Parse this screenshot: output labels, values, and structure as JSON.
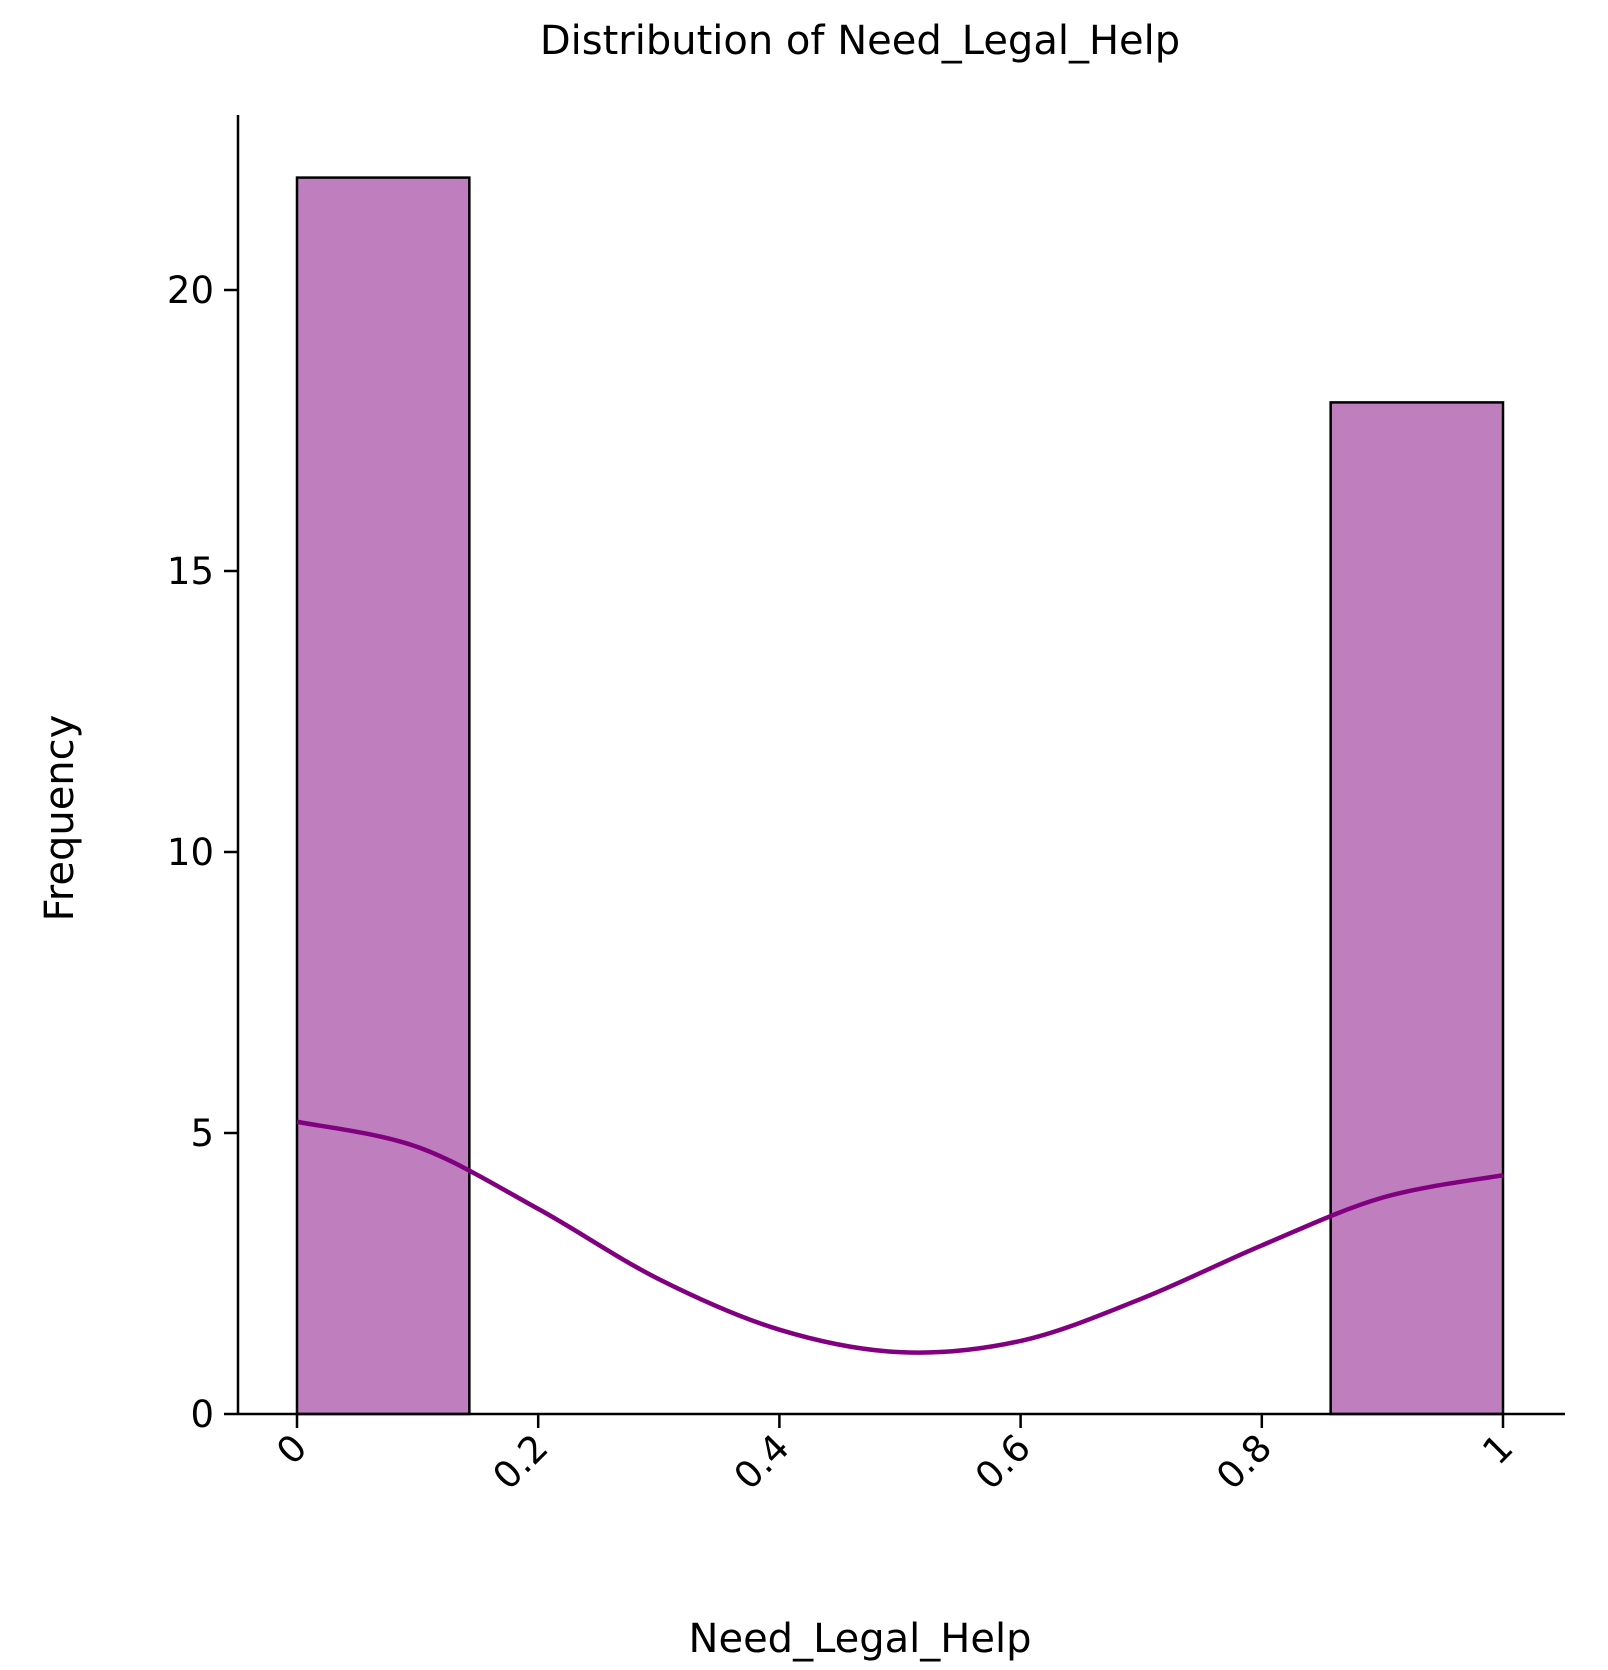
{
  "chart_data": {
    "type": "bar",
    "title": "Distribution of Need_Legal_Help",
    "xlabel": "Need_Legal_Help",
    "ylabel": "Frequency",
    "xlim": [
      -0.025,
      1.05
    ],
    "ylim": [
      0,
      23.2
    ],
    "x_ticks": [
      0,
      0.2,
      0.4,
      0.6,
      0.8,
      1
    ],
    "x_tick_labels": [
      "0",
      "0.2",
      "0.4",
      "0.6",
      "0.8",
      "1"
    ],
    "y_ticks": [
      0,
      5,
      10,
      15,
      20
    ],
    "y_tick_labels": [
      "0",
      "5",
      "10",
      "15",
      "20"
    ],
    "bins": [
      {
        "x0": 0,
        "x1": 0.1429,
        "count": 22
      },
      {
        "x0": 0.1429,
        "x1": 0.2857,
        "count": 0
      },
      {
        "x0": 0.2857,
        "x1": 0.4286,
        "count": 0
      },
      {
        "x0": 0.4286,
        "x1": 0.5714,
        "count": 0
      },
      {
        "x0": 0.5714,
        "x1": 0.7143,
        "count": 0
      },
      {
        "x0": 0.7143,
        "x1": 0.8571,
        "count": 0
      },
      {
        "x0": 0.8571,
        "x1": 1.0,
        "count": 18
      }
    ],
    "kde": {
      "x": [
        0,
        0.1,
        0.2,
        0.3,
        0.4,
        0.5,
        0.6,
        0.7,
        0.8,
        0.9,
        1.0
      ],
      "y": [
        5.2,
        4.75,
        3.65,
        2.4,
        1.5,
        1.1,
        1.3,
        2.05,
        3.0,
        3.85,
        4.25
      ]
    },
    "bar_fill": "#bf7fbf",
    "bar_stroke": "#000000",
    "kde_color": "#800080",
    "grid": false,
    "x_tick_rotation": -45
  }
}
